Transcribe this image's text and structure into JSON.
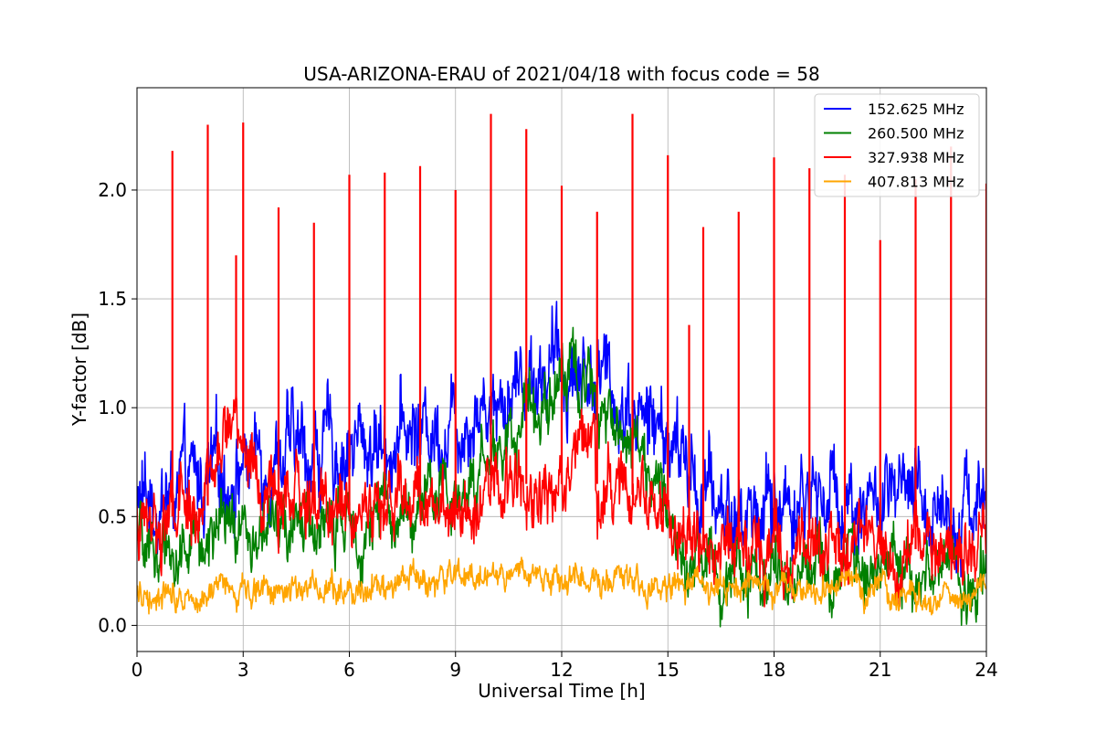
{
  "chart_data": {
    "type": "line",
    "title": "USA-ARIZONA-ERAU of 2021/04/18 with focus code = 58",
    "xlabel": "Universal Time [h]",
    "ylabel": "Y-factor [dB]",
    "xlim": [
      0,
      24
    ],
    "ylim": [
      -0.12,
      2.47
    ],
    "xticks": [
      0,
      3,
      6,
      9,
      12,
      15,
      18,
      21,
      24
    ],
    "xtick_labels": [
      "0",
      "3",
      "6",
      "9",
      "12",
      "15",
      "18",
      "21",
      "24"
    ],
    "yticks": [
      0.0,
      0.5,
      1.0,
      1.5,
      2.0
    ],
    "ytick_labels": [
      "0.0",
      "0.5",
      "1.0",
      "1.5",
      "2.0"
    ],
    "grid": true,
    "legend_position": "top-right",
    "series": [
      {
        "name": "152.625 MHz",
        "color": "#0000ff",
        "baseline": {
          "x": [
            0,
            1,
            2,
            3,
            4,
            5,
            6,
            7,
            8,
            9,
            10,
            11,
            12,
            13,
            14,
            15,
            16,
            17,
            18,
            19,
            20,
            21,
            22,
            23,
            24
          ],
          "y": [
            0.55,
            0.6,
            0.65,
            0.75,
            0.8,
            0.8,
            0.82,
            0.85,
            0.9,
            0.95,
            1.05,
            1.15,
            1.2,
            1.15,
            1.0,
            0.85,
            0.6,
            0.5,
            0.55,
            0.6,
            0.6,
            0.55,
            0.55,
            0.55,
            0.6
          ]
        },
        "noise_amplitude": 0.22
      },
      {
        "name": "260.500 MHz",
        "color": "#008000",
        "baseline": {
          "x": [
            0,
            1,
            2,
            3,
            4,
            5,
            6,
            7,
            8,
            9,
            10,
            11,
            12,
            13,
            14,
            15,
            16,
            17,
            18,
            19,
            20,
            21,
            22,
            23,
            24
          ],
          "y": [
            0.35,
            0.35,
            0.4,
            0.42,
            0.45,
            0.45,
            0.45,
            0.5,
            0.55,
            0.6,
            0.75,
            1.0,
            1.15,
            1.1,
            0.85,
            0.5,
            0.3,
            0.2,
            0.25,
            0.3,
            0.3,
            0.28,
            0.25,
            0.25,
            0.22
          ]
        },
        "noise_amplitude": 0.16
      },
      {
        "name": "327.938 MHz",
        "color": "#ff0000",
        "baseline": {
          "x": [
            0,
            1,
            2,
            2.8,
            3,
            3.5,
            4,
            5,
            6,
            7,
            8,
            9,
            10,
            11,
            12,
            12.9,
            13,
            14,
            15,
            15.5,
            16,
            17,
            18,
            19,
            20,
            21,
            22,
            23,
            24
          ],
          "y": [
            0.45,
            0.5,
            0.55,
            1.05,
            0.85,
            0.55,
            0.55,
            0.55,
            0.55,
            0.55,
            0.6,
            0.6,
            0.62,
            0.65,
            0.65,
            1.0,
            0.65,
            0.6,
            0.55,
            0.4,
            0.35,
            0.35,
            0.38,
            0.4,
            0.38,
            0.35,
            0.35,
            0.35,
            0.38
          ]
        },
        "noise_amplitude": 0.17,
        "spikes": [
          {
            "x": 1.0,
            "y": 2.18
          },
          {
            "x": 2.0,
            "y": 2.3
          },
          {
            "x": 2.8,
            "y": 1.7
          },
          {
            "x": 3.0,
            "y": 2.31
          },
          {
            "x": 4.0,
            "y": 1.92
          },
          {
            "x": 5.0,
            "y": 1.85
          },
          {
            "x": 6.0,
            "y": 2.07
          },
          {
            "x": 7.0,
            "y": 2.08
          },
          {
            "x": 8.0,
            "y": 2.11
          },
          {
            "x": 9.0,
            "y": 2.0
          },
          {
            "x": 10.0,
            "y": 2.35
          },
          {
            "x": 11.0,
            "y": 2.28
          },
          {
            "x": 12.0,
            "y": 2.02
          },
          {
            "x": 13.0,
            "y": 1.9
          },
          {
            "x": 14.0,
            "y": 2.35
          },
          {
            "x": 15.0,
            "y": 2.16
          },
          {
            "x": 15.6,
            "y": 1.38
          },
          {
            "x": 16.0,
            "y": 1.83
          },
          {
            "x": 17.0,
            "y": 1.9
          },
          {
            "x": 18.0,
            "y": 2.15
          },
          {
            "x": 19.0,
            "y": 2.1
          },
          {
            "x": 20.0,
            "y": 2.07
          },
          {
            "x": 21.0,
            "y": 1.77
          },
          {
            "x": 22.0,
            "y": 2.05
          },
          {
            "x": 23.0,
            "y": 2.2
          },
          {
            "x": 24.0,
            "y": 2.03
          }
        ]
      },
      {
        "name": "407.813 MHz",
        "color": "#ffa500",
        "baseline": {
          "x": [
            0,
            3,
            6,
            9,
            10,
            12,
            13,
            15,
            18,
            21,
            24
          ],
          "y": [
            0.15,
            0.17,
            0.18,
            0.21,
            0.24,
            0.22,
            0.21,
            0.17,
            0.15,
            0.15,
            0.15
          ]
        },
        "noise_amplitude": 0.07
      }
    ]
  }
}
